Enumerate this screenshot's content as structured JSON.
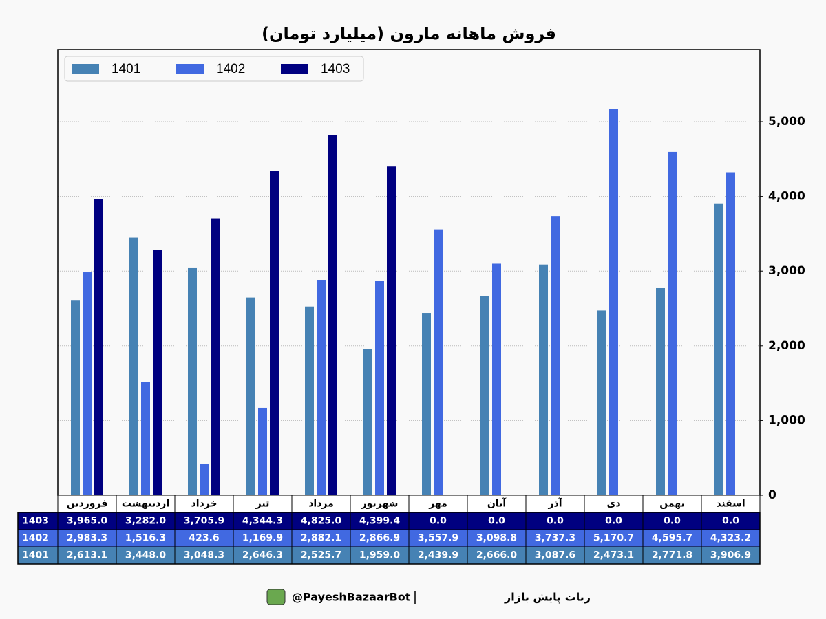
{
  "chart_data": {
    "type": "bar",
    "title": "فروش ماهانه مارون (میلیارد تومان)",
    "categories": [
      "فروردین",
      "اردیبهشت",
      "خرداد",
      "تیر",
      "مرداد",
      "شهریور",
      "مهر",
      "آبان",
      "آذر",
      "دی",
      "بهمن",
      "اسفند"
    ],
    "series": [
      {
        "name": "1401",
        "color": "#4682b4",
        "values": [
          2613.1,
          3448.0,
          3048.3,
          2646.3,
          2525.7,
          1959.0,
          2439.9,
          2666.0,
          3087.6,
          2473.1,
          2771.8,
          3906.9
        ],
        "value_labels": [
          "2,613.1",
          "3,448.0",
          "3,048.3",
          "2,646.3",
          "2,525.7",
          "1,959.0",
          "2,439.9",
          "2,666.0",
          "3,087.6",
          "2,473.1",
          "2,771.8",
          "3,906.9"
        ]
      },
      {
        "name": "1402",
        "color": "#4169e1",
        "values": [
          2983.3,
          1516.3,
          423.6,
          1169.9,
          2882.1,
          2866.9,
          3557.9,
          3098.8,
          3737.3,
          5170.7,
          4595.7,
          4323.2
        ],
        "value_labels": [
          "2,983.3",
          "1,516.3",
          "423.6",
          "1,169.9",
          "2,882.1",
          "2,866.9",
          "3,557.9",
          "3,098.8",
          "3,737.3",
          "5,170.7",
          "4,595.7",
          "4,323.2"
        ]
      },
      {
        "name": "1403",
        "color": "#000080",
        "values": [
          3965.0,
          3282.0,
          3705.9,
          4344.3,
          4825.0,
          4399.4,
          0,
          0,
          0,
          0,
          0,
          0
        ],
        "value_labels": [
          "3,965.0",
          "3,282.0",
          "3,705.9",
          "4,344.3",
          "4,825.0",
          "4,399.4",
          "0.0",
          "0.0",
          "0.0",
          "0.0",
          "0.0",
          "0.0"
        ]
      }
    ],
    "ylim": [
      0,
      5967
    ],
    "yticks": [
      0,
      {
        "value": 1000,
        "label": "1,000"
      },
      {
        "value": 2000,
        "label": "2,000"
      },
      {
        "value": 3000,
        "label": "3,000"
      },
      {
        "value": 4000,
        "label": "4,000"
      },
      {
        "value": 5000,
        "label": "5,000"
      }
    ],
    "grid": true,
    "legend": "top-left",
    "footer": [
      "ربات پایش بازار",
      "@PayeshBazaarBot"
    ]
  }
}
